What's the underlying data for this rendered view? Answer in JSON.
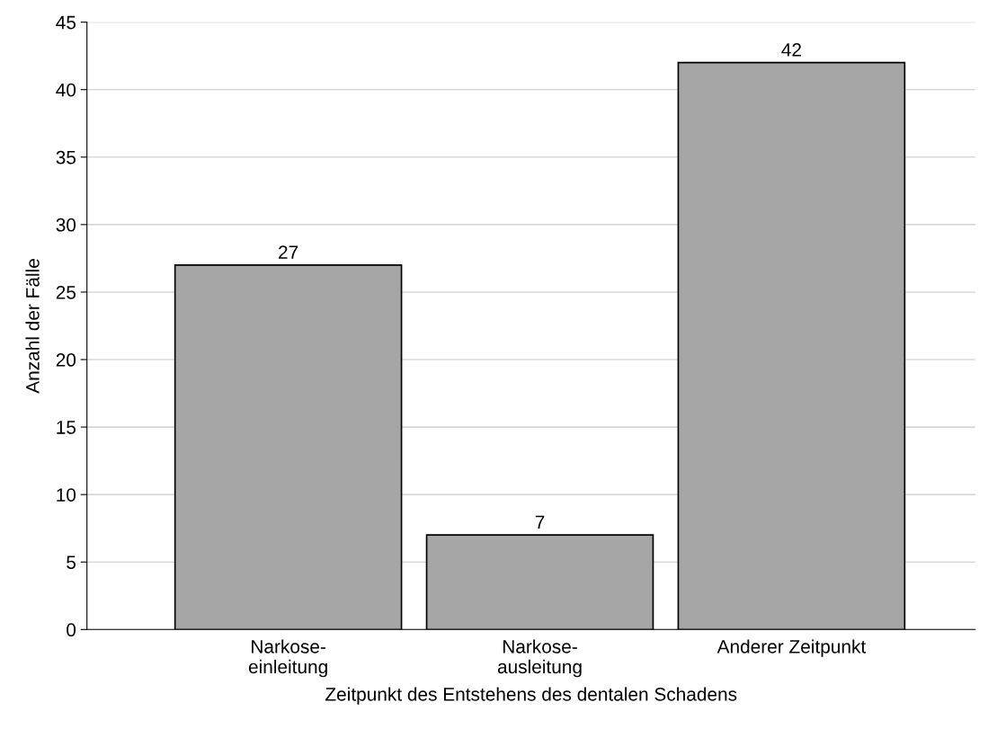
{
  "chart_data": {
    "type": "bar",
    "xlabel": "Zeitpunkt des Entstehens des dentalen Schadens",
    "ylabel": "Anzahl der Fälle",
    "categories": [
      "Narkose-\neinleitung",
      "Narkose-\nausleitung",
      "Anderer Zeitpunkt"
    ],
    "values": [
      27,
      7,
      42
    ],
    "color": "#a6a6a6",
    "ylim": [
      0,
      45
    ],
    "yticks": [
      0,
      5,
      10,
      15,
      20,
      25,
      30,
      35,
      40,
      45
    ],
    "grid": "y",
    "data_labels": true
  }
}
